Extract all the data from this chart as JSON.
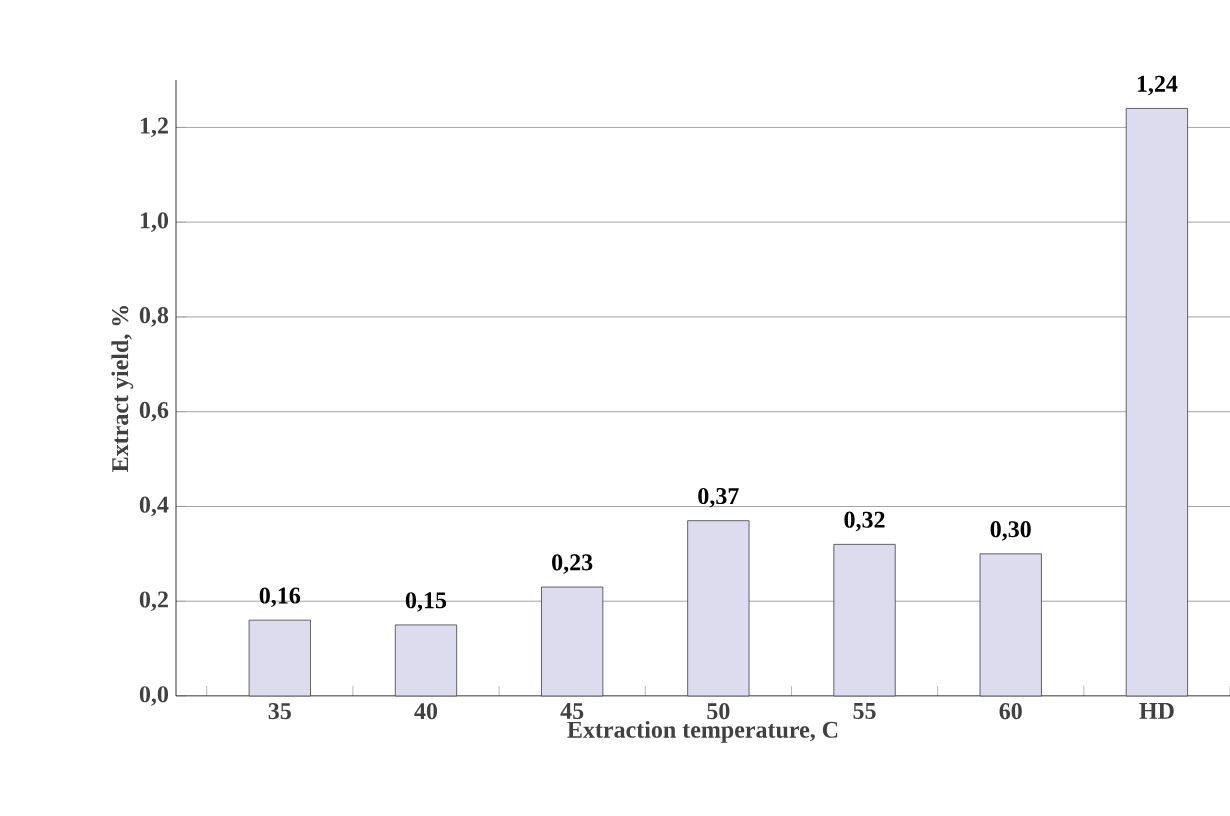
{
  "chart_data": {
    "type": "bar",
    "xlabel": "Extraction temperature, C",
    "ylabel": "Extract yield, %",
    "categories": [
      "35",
      "40",
      "45",
      "50",
      "55",
      "60",
      "HD"
    ],
    "values": [
      0.16,
      0.15,
      0.23,
      0.37,
      0.32,
      0.3,
      1.24
    ],
    "value_labels": [
      "0,16",
      "0,15",
      "0,23",
      "0,37",
      "0,32",
      "0,30",
      "1,24"
    ],
    "color": "#dcdcee",
    "ylim": [
      0,
      1.3
    ],
    "yticks": [
      {
        "value": 0,
        "label": "0,0"
      },
      {
        "value": 0.2,
        "label": "0,2"
      },
      {
        "value": 0.4,
        "label": "0,4"
      },
      {
        "value": 0.6,
        "label": "0,6"
      },
      {
        "value": 0.8,
        "label": "0,8"
      },
      {
        "value": 1.0,
        "label": "1,0"
      },
      {
        "value": 1.2,
        "label": "1,2"
      }
    ],
    "grid": "y"
  }
}
